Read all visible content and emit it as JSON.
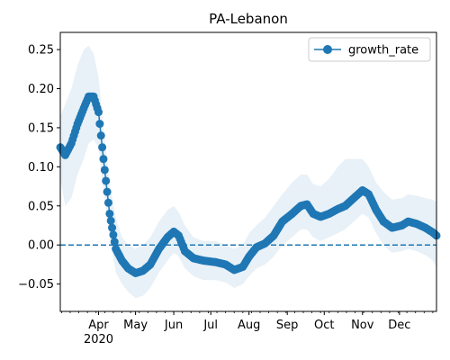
{
  "chart_data": {
    "type": "line",
    "title": "PA-Lebanon",
    "xlabel": "",
    "ylabel": "",
    "x_axis": {
      "start": "2020-03-01",
      "end": "2020-12-31",
      "major_ticks": [
        {
          "date": "2020-04-01",
          "label": "Apr",
          "sublabel": "2020"
        },
        {
          "date": "2020-05-01",
          "label": "May"
        },
        {
          "date": "2020-06-01",
          "label": "Jun"
        },
        {
          "date": "2020-07-01",
          "label": "Jul"
        },
        {
          "date": "2020-08-01",
          "label": "Aug"
        },
        {
          "date": "2020-09-01",
          "label": "Sep"
        },
        {
          "date": "2020-10-01",
          "label": "Oct"
        },
        {
          "date": "2020-11-01",
          "label": "Nov"
        },
        {
          "date": "2020-12-01",
          "label": "Dec"
        }
      ]
    },
    "ylim": [
      -0.085,
      0.272
    ],
    "y_ticks": [
      {
        "value": 0.25,
        "label": "0.25"
      },
      {
        "value": 0.2,
        "label": "0.20"
      },
      {
        "value": 0.15,
        "label": "0.15"
      },
      {
        "value": 0.1,
        "label": "0.10"
      },
      {
        "value": 0.05,
        "label": "0.05"
      },
      {
        "value": 0.0,
        "label": "0.00"
      },
      {
        "value": -0.05,
        "label": "−0.05"
      }
    ],
    "grid": false,
    "legend": {
      "position": "top-right"
    },
    "reference_line": {
      "value": 0.0,
      "style": "dashed"
    },
    "series": [
      {
        "name": "growth_rate",
        "color": "#1f77b4",
        "band_color": "#1f77b4",
        "points": [
          [
            "2020-03-01",
            0.125,
            0.085,
            0.165
          ],
          [
            "2020-03-05",
            0.115,
            0.05,
            0.18
          ],
          [
            "2020-03-10",
            0.13,
            0.06,
            0.2
          ],
          [
            "2020-03-15",
            0.155,
            0.09,
            0.23
          ],
          [
            "2020-03-20",
            0.175,
            0.11,
            0.25
          ],
          [
            "2020-03-24",
            0.19,
            0.13,
            0.255
          ],
          [
            "2020-03-28",
            0.19,
            0.135,
            0.245
          ],
          [
            "2020-04-01",
            0.17,
            0.125,
            0.215
          ],
          [
            "2020-04-05",
            0.11,
            0.07,
            0.15
          ],
          [
            "2020-04-10",
            0.04,
            0.01,
            0.08
          ],
          [
            "2020-04-15",
            -0.005,
            -0.035,
            0.035
          ],
          [
            "2020-04-20",
            -0.02,
            -0.05,
            0.01
          ],
          [
            "2020-04-25",
            -0.03,
            -0.06,
            0.0
          ],
          [
            "2020-05-01",
            -0.036,
            -0.068,
            -0.005
          ],
          [
            "2020-05-07",
            -0.033,
            -0.065,
            0.0
          ],
          [
            "2020-05-13",
            -0.025,
            -0.055,
            0.01
          ],
          [
            "2020-05-20",
            -0.005,
            -0.035,
            0.03
          ],
          [
            "2020-05-27",
            0.01,
            -0.02,
            0.045
          ],
          [
            "2020-06-01",
            0.017,
            -0.01,
            0.05
          ],
          [
            "2020-06-05",
            0.012,
            -0.015,
            0.042
          ],
          [
            "2020-06-10",
            -0.008,
            -0.03,
            0.025
          ],
          [
            "2020-06-17",
            -0.017,
            -0.04,
            0.01
          ],
          [
            "2020-06-25",
            -0.02,
            -0.045,
            0.005
          ],
          [
            "2020-07-05",
            -0.022,
            -0.045,
            0.005
          ],
          [
            "2020-07-13",
            -0.025,
            -0.048,
            0.0
          ],
          [
            "2020-07-20",
            -0.032,
            -0.055,
            -0.005
          ],
          [
            "2020-07-27",
            -0.028,
            -0.05,
            0.0
          ],
          [
            "2020-08-01",
            -0.015,
            -0.04,
            0.015
          ],
          [
            "2020-08-07",
            -0.003,
            -0.03,
            0.025
          ],
          [
            "2020-08-14",
            0.002,
            -0.025,
            0.035
          ],
          [
            "2020-08-21",
            0.012,
            -0.015,
            0.05
          ],
          [
            "2020-08-28",
            0.03,
            0.0,
            0.065
          ],
          [
            "2020-09-05",
            0.04,
            0.01,
            0.08
          ],
          [
            "2020-09-12",
            0.05,
            0.02,
            0.09
          ],
          [
            "2020-09-17",
            0.052,
            0.02,
            0.09
          ],
          [
            "2020-09-22",
            0.04,
            0.01,
            0.078
          ],
          [
            "2020-09-28",
            0.036,
            0.005,
            0.075
          ],
          [
            "2020-10-05",
            0.04,
            0.01,
            0.085
          ],
          [
            "2020-10-12",
            0.046,
            0.015,
            0.1
          ],
          [
            "2020-10-18",
            0.05,
            0.02,
            0.11
          ],
          [
            "2020-10-25",
            0.06,
            0.03,
            0.11
          ],
          [
            "2020-11-01",
            0.07,
            0.04,
            0.11
          ],
          [
            "2020-11-06",
            0.065,
            0.035,
            0.1
          ],
          [
            "2020-11-12",
            0.045,
            0.015,
            0.08
          ],
          [
            "2020-11-18",
            0.03,
            0.0,
            0.068
          ],
          [
            "2020-11-25",
            0.022,
            -0.01,
            0.058
          ],
          [
            "2020-12-03",
            0.025,
            -0.008,
            0.06
          ],
          [
            "2020-12-08",
            0.03,
            -0.005,
            0.065
          ],
          [
            "2020-12-15",
            0.027,
            -0.008,
            0.063
          ],
          [
            "2020-12-22",
            0.022,
            -0.013,
            0.06
          ],
          [
            "2020-12-28",
            0.016,
            -0.02,
            0.058
          ],
          [
            "2020-12-31",
            0.012,
            -0.028,
            0.055
          ]
        ]
      }
    ]
  }
}
